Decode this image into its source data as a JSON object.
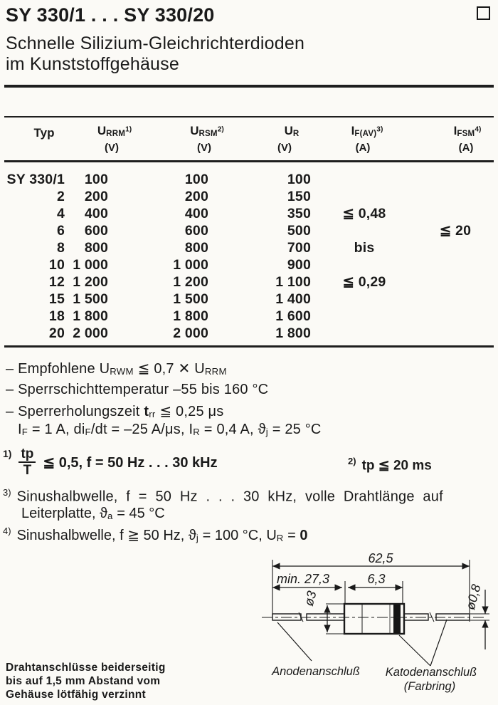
{
  "colors": {
    "ink": "#1a1a1a",
    "paper": "#fbfaf6"
  },
  "header": {
    "title": "SY 330/1 . . . SY 330/20",
    "subtitle_line1": "Schnelle Silizium-Gleichrichterdioden",
    "subtitle_line2": "im Kunststoffgehäuse"
  },
  "table": {
    "header": {
      "typ": "Typ",
      "cols": [
        {
          "base": "U",
          "sub": "RRM",
          "sup": "1)",
          "unit": "(V)"
        },
        {
          "base": "U",
          "sub": "RSM",
          "sup": "2)",
          "unit": "(V)"
        },
        {
          "base": "U",
          "sub": "R",
          "sup": "",
          "unit": "(V)"
        },
        {
          "base": "I",
          "sub": "F(AV)",
          "sup": "3)",
          "unit": "(A)"
        },
        {
          "base": "I",
          "sub": "FSM",
          "sup": "4)",
          "unit": "(A)"
        }
      ]
    },
    "rows": [
      {
        "typ": "SY 330/1",
        "urrm": "100",
        "ursm": "100",
        "ur": "100",
        "ifav": "",
        "ifsm": ""
      },
      {
        "typ": "2",
        "urrm": "200",
        "ursm": "200",
        "ur": "150",
        "ifav": "",
        "ifsm": ""
      },
      {
        "typ": "4",
        "urrm": "400",
        "ursm": "400",
        "ur": "350",
        "ifav": "≦ 0,48",
        "ifsm": ""
      },
      {
        "typ": "6",
        "urrm": "600",
        "ursm": "600",
        "ur": "500",
        "ifav": "",
        "ifsm": "≦ 20"
      },
      {
        "typ": "8",
        "urrm": "800",
        "ursm": "800",
        "ur": "700",
        "ifav": "bis",
        "ifsm": ""
      },
      {
        "typ": "10",
        "urrm": "1 000",
        "ursm": "1 000",
        "ur": "900",
        "ifav": "",
        "ifsm": ""
      },
      {
        "typ": "12",
        "urrm": "1 200",
        "ursm": "1 200",
        "ur": "1 100",
        "ifav": "≦ 0,29",
        "ifsm": ""
      },
      {
        "typ": "15",
        "urrm": "1 500",
        "ursm": "1 500",
        "ur": "1 400",
        "ifav": "",
        "ifsm": ""
      },
      {
        "typ": "18",
        "urrm": "1 800",
        "ursm": "1 800",
        "ur": "1 600",
        "ifav": "",
        "ifsm": ""
      },
      {
        "typ": "20",
        "urrm": "2 000",
        "ursm": "2 000",
        "ur": "1 800",
        "ifav": "",
        "ifsm": ""
      }
    ]
  },
  "notes": {
    "n1": [
      {
        "t": "– Empfohlene U"
      },
      {
        "t": "RWM",
        "m": "sub"
      },
      {
        "t": " ≦ 0,7 ✕ U"
      },
      {
        "t": "RRM",
        "m": "sub"
      }
    ],
    "n2": [
      {
        "t": "– Sperrschichttemperatur –55 bis 160 °C"
      }
    ],
    "n3": [
      {
        "t": "– Sperrerholungszeit "
      },
      {
        "t": "t",
        "m": "b"
      },
      {
        "t": "rr",
        "m": "sub"
      },
      {
        "t": " ≦ 0,25 μs"
      }
    ],
    "n4": [
      {
        "t": "I"
      },
      {
        "t": "F",
        "m": "sub"
      },
      {
        "t": " = 1 A, di"
      },
      {
        "t": "F",
        "m": "sub"
      },
      {
        "t": "/dt = –25 A/μs, I"
      },
      {
        "t": "R",
        "m": "sub"
      },
      {
        "t": " = 0,4 A, "
      },
      {
        "t": "ϑ"
      },
      {
        "t": "j",
        "m": "sub"
      },
      {
        "t": " = 25 °C"
      }
    ]
  },
  "footnotes": {
    "f1": {
      "marker": "1)",
      "num": "tp",
      "den": "T",
      "rest": [
        {
          "t": "≦ 0,5, f = 50 Hz . . . 30 kHz"
        }
      ]
    },
    "f2": {
      "marker": "2)",
      "text": [
        {
          "t": "tp ≦ 20 ms"
        }
      ]
    },
    "f3": {
      "marker": "3)",
      "line1": [
        {
          "t": "Sinushalbwelle, f = 50 Hz . . . 30 kHz, volle Drahtlänge auf"
        }
      ],
      "line2": [
        {
          "t": "Leiterplatte, "
        },
        {
          "t": "ϑ"
        },
        {
          "t": "a",
          "m": "sub"
        },
        {
          "t": " = 45 °C"
        }
      ]
    },
    "f4": {
      "marker": "4)",
      "text": [
        {
          "t": "Sinushalbwelle, f ≧ 50 Hz, "
        },
        {
          "t": "ϑ"
        },
        {
          "t": "j",
          "m": "sub"
        },
        {
          "t": " = 100 °C, U"
        },
        {
          "t": "R",
          "m": "sub"
        },
        {
          "t": " = "
        },
        {
          "t": "0",
          "m": "b"
        }
      ]
    }
  },
  "drawing": {
    "dim_overall": "62,5",
    "dim_lead_min": "min. 27,3",
    "dim_body": "6,3",
    "dim_body_dia": "ø3",
    "dim_lead_dia": "ø0,8",
    "label_anode": "Anodenanschluß",
    "label_cathode": "Katodenanschluß",
    "label_cathode_sub": "(Farbring)"
  },
  "bottom_note": {
    "line1": "Drahtanschlüsse beiderseitig",
    "line2": "bis auf 1,5 mm Abstand vom",
    "line3": "Gehäuse lötfähig verzinnt"
  }
}
